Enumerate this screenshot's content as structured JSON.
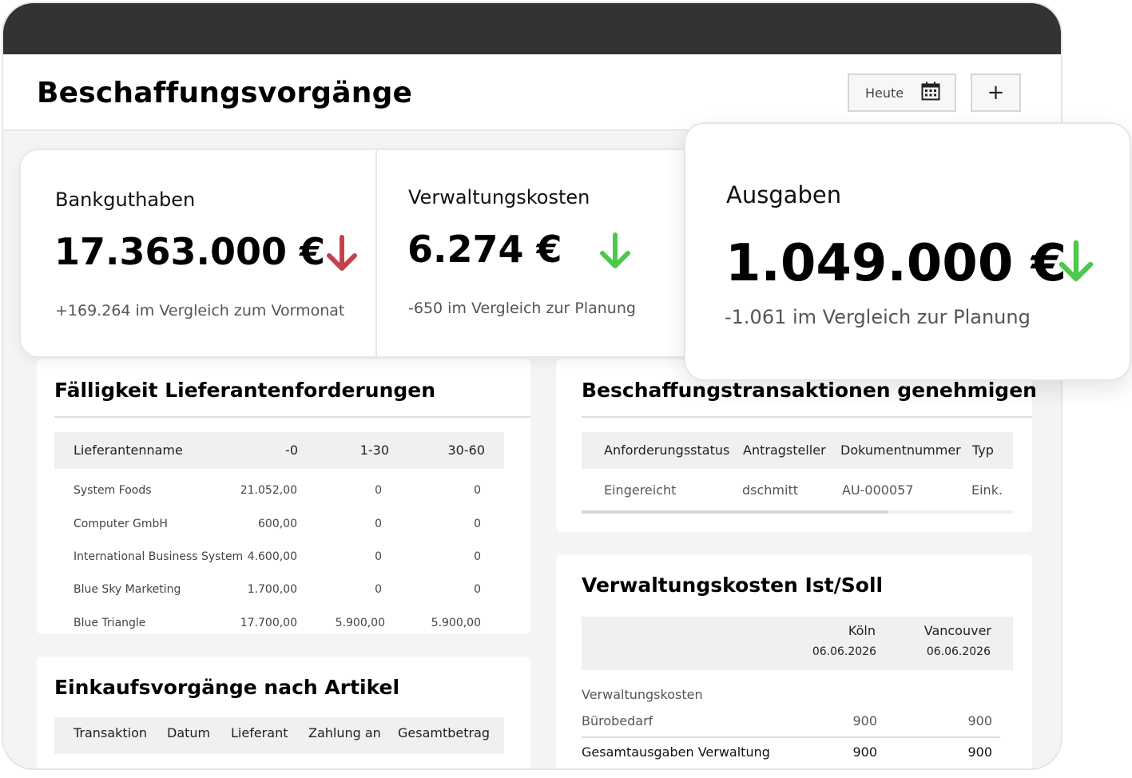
{
  "header": {
    "title": "Beschaffungsvorgänge",
    "date_button_label": "Heute",
    "date_icon": "calendar-icon",
    "add_button_label": "+"
  },
  "kpis": [
    {
      "label": "Bankguthaben",
      "value": "17.363.000 €",
      "trend": "down",
      "trend_color": "#c0434b",
      "comparison": "+169.264 im Vergleich zum Vormonat"
    },
    {
      "label": "Verwaltungskosten",
      "value": "6.274 €",
      "trend": "down",
      "trend_color": "#4cc94c",
      "comparison": "-650 im Vergleich zur Planung"
    },
    {
      "label": "Ausgaben",
      "value": "1.049.000 €",
      "trend": "down",
      "trend_color": "#4cc94c",
      "comparison": "-1.061 im Vergleich zur Planung"
    }
  ],
  "faelligkeit": {
    "title": "Fälligkeit Lieferantenforderungen",
    "columns": [
      "Lieferantenname",
      "-0",
      "1-30",
      "30-60"
    ],
    "rows": [
      [
        "System Foods",
        "21.052,00",
        "0",
        "0"
      ],
      [
        "Computer GmbH",
        "600,00",
        "0",
        "0"
      ],
      [
        "International Business System",
        "4.600,00",
        "0",
        "0"
      ],
      [
        "Blue Sky Marketing",
        "1.700,00",
        "0",
        "0"
      ],
      [
        "Blue Triangle",
        "17.700,00",
        "5.900,00",
        "5.900,00"
      ]
    ]
  },
  "einkauf": {
    "title": "Einkaufsvorgänge nach Artikel",
    "columns": [
      "Transaktion",
      "Datum",
      "Lieferant",
      "Zahlung an",
      "Gesamtbetrag"
    ]
  },
  "genehmigen": {
    "title": "Beschaffungstransaktionen genehmigen",
    "columns": [
      "Anforderungsstatus",
      "Antragsteller",
      "Dokumentnummer",
      "Typ"
    ],
    "rows": [
      [
        "Eingereicht",
        "dschmitt",
        "AU-000057",
        "Eink."
      ]
    ],
    "scroll_fraction": 0.71
  },
  "verwaltung": {
    "title": "Verwaltungskosten Ist/Soll",
    "columns": [
      {
        "name": "Köln",
        "date": "06.06.2026"
      },
      {
        "name": "Vancouver",
        "date": "06.06.2026"
      }
    ],
    "section_label": "Verwaltungskosten",
    "rows": [
      [
        "Bürobedarf",
        "900",
        "900"
      ]
    ],
    "total_row": [
      "Gesamtausgaben Verwaltung",
      "900",
      "900"
    ]
  }
}
